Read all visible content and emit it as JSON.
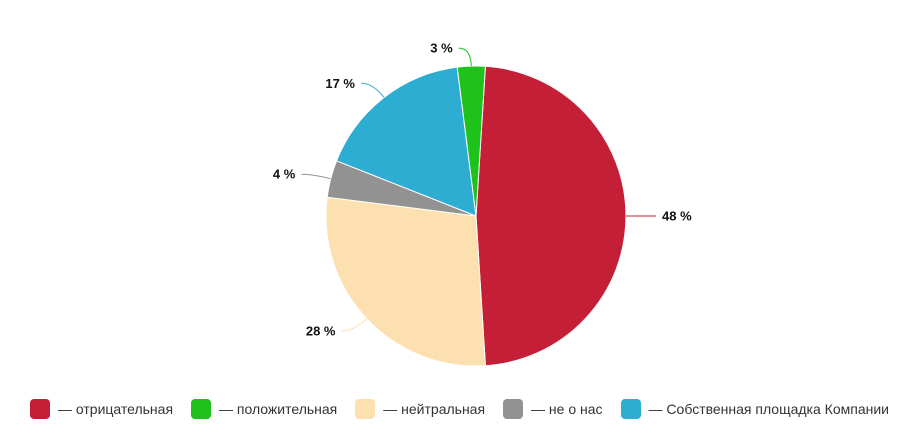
{
  "chart_data": {
    "type": "pie",
    "title": "",
    "slices": [
      {
        "label": "— отрицательная",
        "value": 48,
        "display": "48 %",
        "color": "#c41f37"
      },
      {
        "label": "— нейтральная",
        "value": 28,
        "display": "28 %",
        "color": "#fce0af"
      },
      {
        "label": "— не о нас",
        "value": 4,
        "display": "4 %",
        "color": "#929292"
      },
      {
        "label": "— Собственная площадка Компании",
        "value": 17,
        "display": "17 %",
        "color": "#2eadd3"
      },
      {
        "label": "— положительная",
        "value": 3,
        "display": "3 %",
        "color": "#1fc11b"
      }
    ],
    "legend_position": "bottom",
    "legend": [
      {
        "label": "— отрицательная",
        "color": "#c41f37"
      },
      {
        "label": "— положительная",
        "color": "#1fc11b"
      },
      {
        "label": "— нейтральная",
        "color": "#fce0af"
      },
      {
        "label": "— не о нас",
        "color": "#929292"
      },
      {
        "label": "— Собственная площадка Компании",
        "color": "#2eadd3"
      }
    ]
  }
}
